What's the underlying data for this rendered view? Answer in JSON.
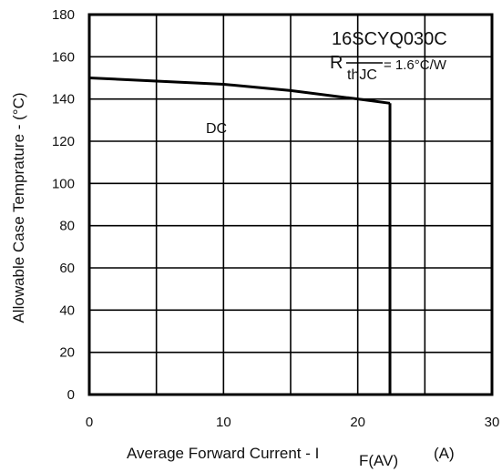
{
  "chart_data": {
    "type": "line",
    "xlabel": "Average Forward Current  - I",
    "xlabel_subscript": "F(AV)",
    "xlabel_unit": "(A)",
    "ylabel": "Allowable Case Temprature - (°C)",
    "xlim": [
      0,
      30
    ],
    "ylim": [
      0,
      180
    ],
    "x_ticks": [
      0,
      10,
      20,
      30
    ],
    "y_ticks": [
      0,
      20,
      40,
      60,
      80,
      100,
      120,
      140,
      160,
      180
    ],
    "grid": true,
    "series": [
      {
        "name": "DC",
        "x": [
          0,
          5,
          10,
          15,
          20,
          22.4
        ],
        "y": [
          150,
          148.5,
          147,
          144,
          140,
          138
        ]
      }
    ],
    "drop_line": {
      "x": 22.4,
      "y_top": 138,
      "y_bottom": 0
    },
    "annotations": {
      "part_number": "16SCYQ030C",
      "rth_prefix": "R",
      "rth_subscript": "thJC",
      "rth_value": "=  1.6°C/W",
      "series_label": "DC"
    }
  }
}
